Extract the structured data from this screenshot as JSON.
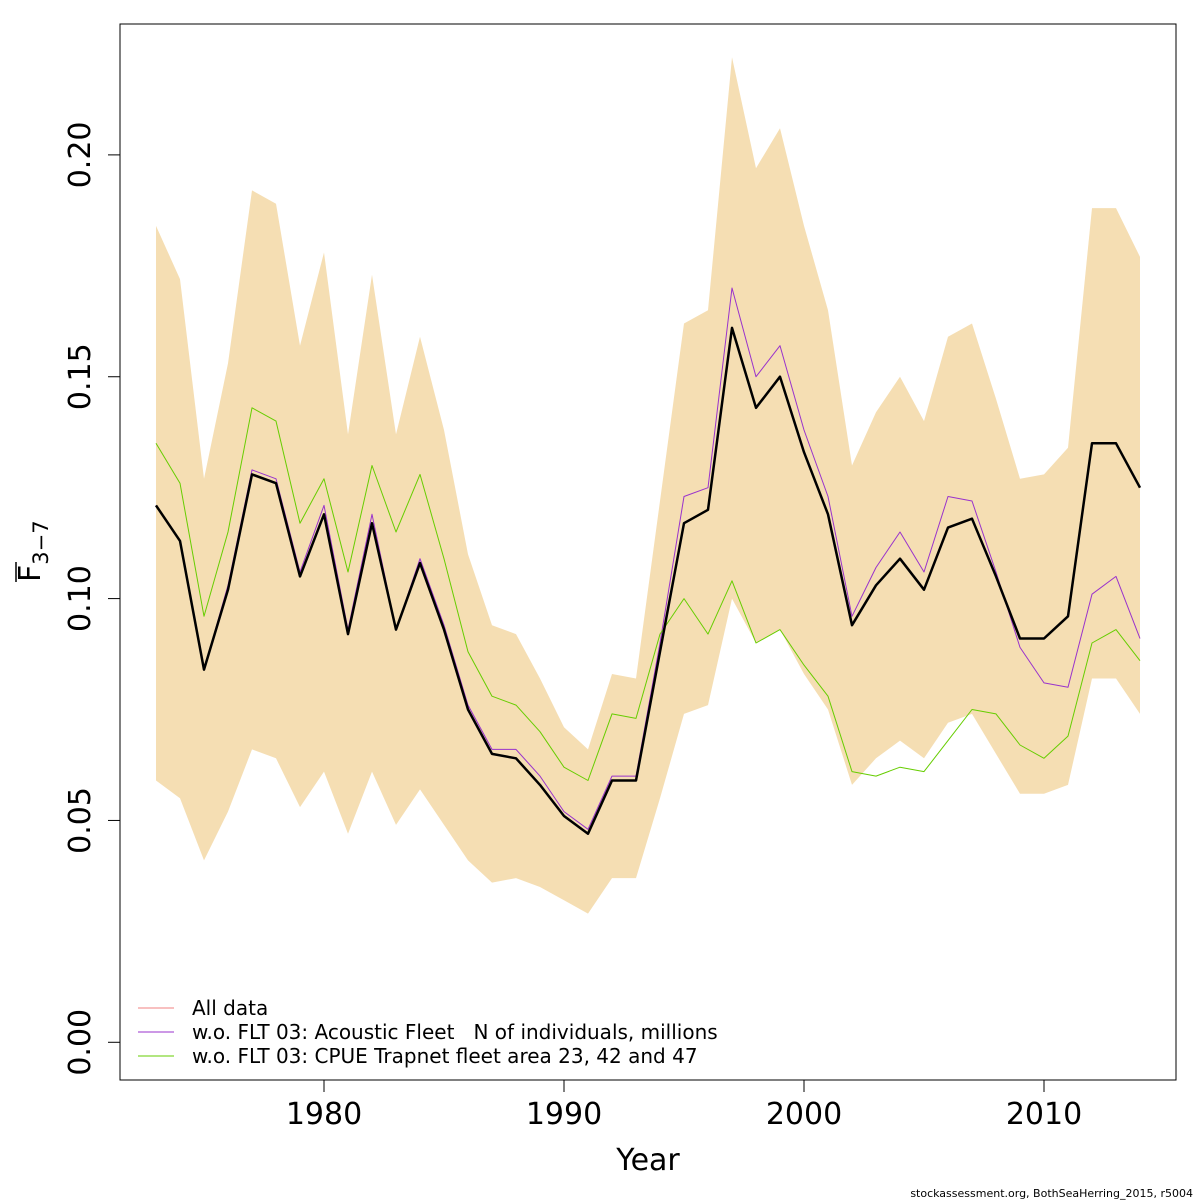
{
  "chart_data": {
    "type": "line",
    "xlabel": "Year",
    "ylabel": {
      "main": "F",
      "subscript": "3−7",
      "overline": true
    },
    "xlim": [
      1971.5,
      2015.5
    ],
    "ylim": [
      -0.0085,
      0.2295
    ],
    "x_ticks": [
      1980,
      1990,
      2000,
      2010
    ],
    "x_tick_labels": [
      "1980",
      "1990",
      "2000",
      "2010"
    ],
    "y_ticks": [
      0,
      0.05,
      0.1,
      0.15,
      0.2
    ],
    "y_tick_labels": [
      "0.00",
      "0.05",
      "0.10",
      "0.15",
      "0.20"
    ],
    "grid": false,
    "legend_position": "bottom-left",
    "band": {
      "color": "#F5DEB3",
      "years": [
        1973,
        1974,
        1975,
        1976,
        1977,
        1978,
        1979,
        1980,
        1981,
        1982,
        1983,
        1984,
        1985,
        1986,
        1987,
        1988,
        1989,
        1990,
        1991,
        1992,
        1993,
        1994,
        1995,
        1996,
        1997,
        1998,
        1999,
        2000,
        2001,
        2002,
        2003,
        2004,
        2005,
        2006,
        2007,
        2008,
        2009,
        2010,
        2011,
        2012,
        2013,
        2014
      ],
      "upper": [
        0.184,
        0.172,
        0.127,
        0.153,
        0.192,
        0.189,
        0.157,
        0.178,
        0.137,
        0.173,
        0.137,
        0.159,
        0.138,
        0.11,
        0.094,
        0.092,
        0.082,
        0.071,
        0.066,
        0.083,
        0.082,
        0.122,
        0.162,
        0.165,
        0.222,
        0.197,
        0.206,
        0.184,
        0.165,
        0.13,
        0.142,
        0.15,
        0.14,
        0.159,
        0.162,
        0.145,
        0.127,
        0.128,
        0.134,
        0.188,
        0.188,
        0.177
      ],
      "lower": [
        0.059,
        0.055,
        0.041,
        0.052,
        0.066,
        0.064,
        0.053,
        0.061,
        0.047,
        0.061,
        0.049,
        0.057,
        0.049,
        0.041,
        0.036,
        0.037,
        0.035,
        0.032,
        0.029,
        0.037,
        0.037,
        0.055,
        0.074,
        0.076,
        0.1,
        0.09,
        0.093,
        0.083,
        0.075,
        0.058,
        0.064,
        0.068,
        0.064,
        0.072,
        0.074,
        0.065,
        0.056,
        0.056,
        0.058,
        0.082,
        0.082,
        0.074
      ]
    },
    "x": [
      1973,
      1974,
      1975,
      1976,
      1977,
      1978,
      1979,
      1980,
      1981,
      1982,
      1983,
      1984,
      1985,
      1986,
      1987,
      1988,
      1989,
      1990,
      1991,
      1992,
      1993,
      1994,
      1995,
      1996,
      1997,
      1998,
      1999,
      2000,
      2001,
      2002,
      2003,
      2004,
      2005,
      2006,
      2007,
      2008,
      2009,
      2010,
      2011,
      2012,
      2013,
      2014
    ],
    "series": [
      {
        "name": "All data",
        "color": "#000000",
        "legend_color": "#F08080",
        "width": 2.5,
        "values": [
          0.121,
          0.113,
          0.084,
          0.102,
          0.128,
          0.126,
          0.105,
          0.119,
          0.092,
          0.117,
          0.093,
          0.108,
          0.093,
          0.075,
          0.065,
          0.064,
          0.058,
          0.051,
          0.047,
          0.059,
          0.059,
          0.088,
          0.117,
          0.12,
          0.161,
          0.143,
          0.15,
          0.133,
          0.119,
          0.094,
          0.103,
          0.109,
          0.102,
          0.116,
          0.118,
          0.105,
          0.091,
          0.091,
          0.096,
          0.135,
          0.135,
          0.125
        ]
      },
      {
        "name": "w.o. FLT 03: Acoustic Fleet   N of individuals, millions",
        "color": "#9932CC",
        "legend_color": "#9932CC",
        "width": 1,
        "values": [
          0.121,
          0.113,
          0.084,
          0.103,
          0.129,
          0.127,
          0.106,
          0.121,
          0.093,
          0.119,
          0.093,
          0.109,
          0.094,
          0.076,
          0.066,
          0.066,
          0.06,
          0.052,
          0.048,
          0.06,
          0.06,
          0.09,
          0.123,
          0.125,
          0.17,
          0.15,
          0.157,
          0.138,
          0.123,
          0.096,
          0.107,
          0.115,
          0.106,
          0.123,
          0.122,
          0.106,
          0.089,
          0.081,
          0.08,
          0.101,
          0.105,
          0.091
        ]
      },
      {
        "name": "w.o. FLT 03: CPUE Trapnet fleet area 23, 42 and 47",
        "color": "#66CD00",
        "legend_color": "#66CD00",
        "width": 1,
        "values": [
          0.135,
          0.126,
          0.096,
          0.115,
          0.143,
          0.14,
          0.117,
          0.127,
          0.106,
          0.13,
          0.115,
          0.128,
          0.109,
          0.088,
          0.078,
          0.076,
          0.07,
          0.062,
          0.059,
          0.074,
          0.073,
          0.092,
          0.1,
          0.092,
          0.104,
          0.09,
          0.093,
          0.085,
          0.078,
          0.061,
          0.06,
          0.062,
          0.061,
          0.068,
          0.075,
          0.074,
          0.067,
          0.064,
          0.069,
          0.09,
          0.093,
          0.086
        ]
      }
    ]
  },
  "credit": "stockassessment.org, BothSeaHerring_2015, r5004"
}
